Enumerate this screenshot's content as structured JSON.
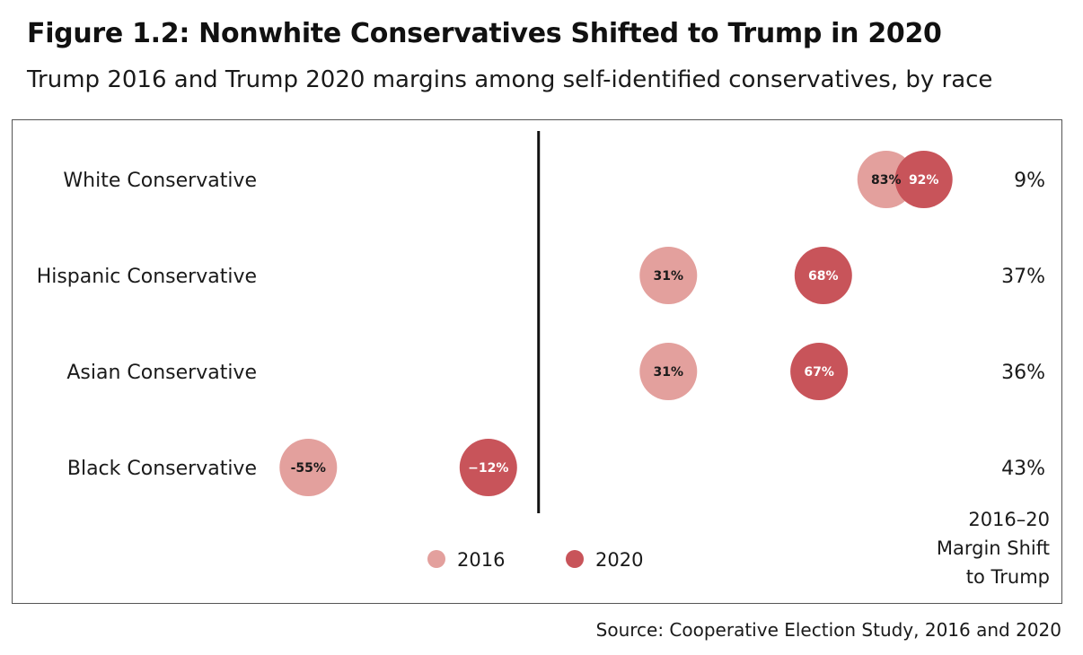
{
  "title": "Figure 1.2: Nonwhite Conservatives Shifted to Trump in 2020",
  "subtitle": "Trump 2016 and Trump 2020 margins among self-identified conservatives, by race",
  "source": "Source: Cooperative Election Study, 2016 and 2020",
  "colors": {
    "c2016": "#e3a09d",
    "c2020": "#c8545a",
    "zero_line": "#111111",
    "border": "#555555"
  },
  "chart_data": {
    "type": "dot",
    "xlim": [
      -63,
      100
    ],
    "zero_line": 0,
    "categories": [
      "White Conservative",
      "Hispanic Conservative",
      "Asian Conservative",
      "Black Conservative"
    ],
    "series": [
      {
        "name": "2016",
        "values": [
          83,
          31,
          31,
          -55
        ],
        "labels": [
          "83%",
          "31%",
          "31%",
          "-55%"
        ]
      },
      {
        "name": "2020",
        "values": [
          92,
          68,
          67,
          -12
        ],
        "labels": [
          "92%",
          "68%",
          "67%",
          "−12%"
        ]
      }
    ],
    "shift": {
      "title_lines": [
        "2016–20",
        "Margin Shift",
        "to Trump"
      ],
      "values": [
        "9%",
        "37%",
        "36%",
        "43%"
      ]
    },
    "legend": {
      "position": "bottom-center",
      "items": [
        "2016",
        "2020"
      ]
    }
  }
}
